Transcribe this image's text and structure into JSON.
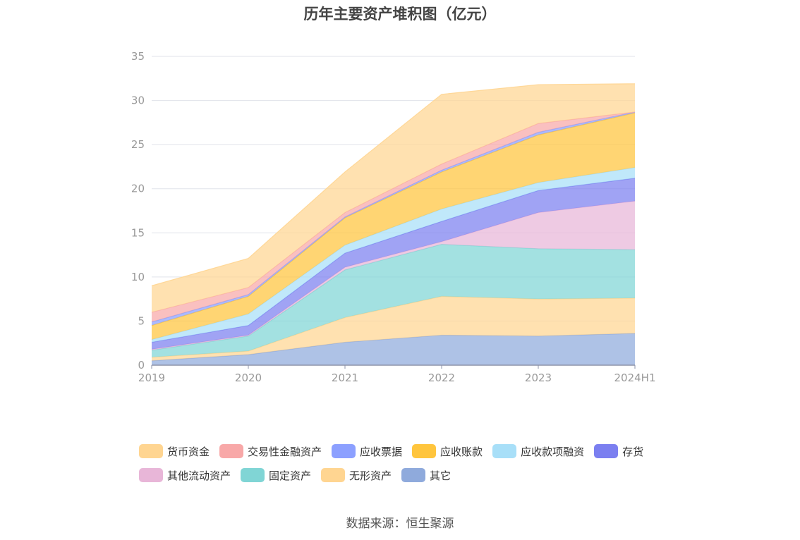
{
  "chart_data": {
    "type": "area",
    "stacked": true,
    "title": "历年主要资产堆积图（亿元）",
    "xlabel": "",
    "ylabel": "",
    "categories": [
      "2019",
      "2020",
      "2021",
      "2022",
      "2023",
      "2024H1"
    ],
    "ylim": [
      0,
      35
    ],
    "yticks": [
      0,
      5,
      10,
      15,
      20,
      25,
      30,
      35
    ],
    "grid": true,
    "legend_position": "bottom",
    "series": [
      {
        "name": "其它",
        "color": "#8faadc",
        "values": [
          0.5,
          1.2,
          2.6,
          3.4,
          3.3,
          3.6
        ]
      },
      {
        "name": "无形资产",
        "color": "#ffd591",
        "values": [
          0.4,
          0.4,
          2.8,
          4.4,
          4.2,
          4.0
        ]
      },
      {
        "name": "固定资产",
        "color": "#80d5d5",
        "values": [
          0.8,
          1.7,
          5.4,
          5.9,
          5.7,
          5.5
        ]
      },
      {
        "name": "其他流动资产",
        "color": "#e8b6d8",
        "values": [
          0.1,
          0.1,
          0.3,
          0.3,
          4.1,
          5.5
        ]
      },
      {
        "name": "存货",
        "color": "#7b7ff0",
        "values": [
          0.8,
          1.1,
          1.6,
          2.3,
          2.5,
          2.6
        ]
      },
      {
        "name": "应收款项融资",
        "color": "#a8dff8",
        "values": [
          0.3,
          1.3,
          0.9,
          1.4,
          0.9,
          1.2
        ]
      },
      {
        "name": "应收账款",
        "color": "#ffc53d",
        "values": [
          1.6,
          2.0,
          3.1,
          4.2,
          5.4,
          6.2
        ]
      },
      {
        "name": "应收票据",
        "color": "#8ca0ff",
        "values": [
          0.4,
          0.2,
          0.1,
          0.2,
          0.3,
          0.1
        ]
      },
      {
        "name": "交易性金融资产",
        "color": "#f8a8a8",
        "values": [
          1.1,
          0.8,
          0.5,
          0.7,
          1.0,
          0.0
        ]
      },
      {
        "name": "货币资金",
        "color": "#ffd591",
        "values": [
          3.0,
          3.3,
          4.6,
          7.9,
          4.4,
          3.2
        ]
      }
    ],
    "legend_order": [
      "货币资金",
      "交易性金融资产",
      "应收票据",
      "应收账款",
      "应收款项融资",
      "存货",
      "其他流动资产",
      "固定资产",
      "无形资产",
      "其它"
    ]
  },
  "source_note": "数据来源：恒生聚源"
}
